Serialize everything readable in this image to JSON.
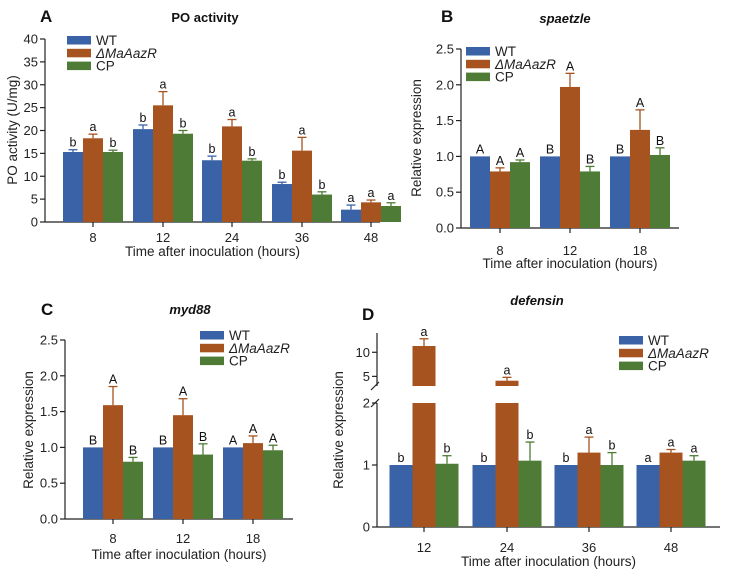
{
  "colors": {
    "WT": "#3a62a6",
    "mutant": "#a6531f",
    "CP": "#4e7b35"
  },
  "chart_data": [
    {
      "panel": "A",
      "type": "bar",
      "title": "PO activity",
      "title_italic": false,
      "xlabel": "Time after inoculation (hours)",
      "ylabel": "PO activity (U/mg)",
      "categories": [
        "8",
        "12",
        "24",
        "36",
        "48"
      ],
      "ylim": [
        0,
        40
      ],
      "yticks": [
        "0",
        "5",
        "10",
        "15",
        "20",
        "25",
        "30",
        "35",
        "40"
      ],
      "legend_position": "top-left",
      "series": [
        {
          "name": "WT",
          "values": [
            15.3,
            20.3,
            13.5,
            8.3,
            2.7
          ],
          "errors": [
            0.5,
            0.9,
            0.9,
            0.4,
            1.0
          ],
          "letters": [
            "b",
            "b",
            "b",
            "b",
            "a"
          ]
        },
        {
          "name": "ΔMaAazR",
          "values": [
            18.3,
            25.5,
            20.9,
            15.6,
            4.3
          ],
          "errors": [
            0.9,
            3.0,
            1.5,
            2.9,
            0.5
          ],
          "letters": [
            "a",
            "a",
            "a",
            "a",
            "a"
          ]
        },
        {
          "name": "CP",
          "values": [
            15.3,
            19.3,
            13.4,
            6.0,
            3.5
          ],
          "errors": [
            0.4,
            0.7,
            0.4,
            0.6,
            0.7
          ],
          "letters": [
            "b",
            "b",
            "b",
            "b",
            "a"
          ]
        }
      ]
    },
    {
      "panel": "B",
      "type": "bar",
      "title": "spaetzle",
      "title_italic": true,
      "xlabel": "Time after inoculation (hours)",
      "ylabel": "Relative expression",
      "categories": [
        "8",
        "12",
        "18"
      ],
      "ylim": [
        0,
        2.5
      ],
      "yticks": [
        "0.0",
        "0.5",
        "1.0",
        "1.5",
        "2.0",
        "2.5"
      ],
      "legend_position": "top-left",
      "series": [
        {
          "name": "WT",
          "values": [
            1.0,
            1.0,
            1.0
          ],
          "errors": [
            0,
            0,
            0
          ],
          "letters": [
            "A",
            "B",
            "B"
          ]
        },
        {
          "name": "ΔMaAazR",
          "values": [
            0.79,
            1.97,
            1.37
          ],
          "errors": [
            0.05,
            0.19,
            0.28
          ],
          "letters": [
            "A",
            "A",
            "A"
          ]
        },
        {
          "name": "CP",
          "values": [
            0.92,
            0.79,
            1.02
          ],
          "errors": [
            0.03,
            0.07,
            0.1
          ],
          "letters": [
            "A",
            "B",
            "B"
          ]
        }
      ]
    },
    {
      "panel": "C",
      "type": "bar",
      "title": "myd88",
      "title_italic": true,
      "xlabel": "Time after inoculation (hours)",
      "ylabel": "Relative expression",
      "categories": [
        "8",
        "12",
        "18"
      ],
      "ylim": [
        0,
        2.5
      ],
      "yticks": [
        "0.0",
        "0.5",
        "1.0",
        "1.5",
        "2.0",
        "2.5"
      ],
      "legend_position": "top-right",
      "series": [
        {
          "name": "WT",
          "values": [
            1.0,
            1.0,
            1.0
          ],
          "errors": [
            0,
            0,
            0
          ],
          "letters": [
            "B",
            "B",
            "A"
          ]
        },
        {
          "name": "ΔMaAazR",
          "values": [
            1.59,
            1.45,
            1.06
          ],
          "errors": [
            0.26,
            0.23,
            0.1
          ],
          "letters": [
            "A",
            "A",
            "A"
          ]
        },
        {
          "name": "CP",
          "values": [
            0.8,
            0.9,
            0.96
          ],
          "errors": [
            0.06,
            0.15,
            0.07
          ],
          "letters": [
            "B",
            "B",
            "A"
          ]
        }
      ]
    },
    {
      "panel": "D",
      "type": "bar",
      "title": "defensin",
      "title_italic": true,
      "xlabel": "Time after inoculation (hours)",
      "ylabel": "Relative expression",
      "categories": [
        "12",
        "24",
        "36",
        "48"
      ],
      "ylim": [
        0,
        14
      ],
      "axis_break": [
        2,
        3
      ],
      "yticks": [
        "0",
        "1",
        "2",
        "5",
        "10"
      ],
      "legend_position": "top-right",
      "series": [
        {
          "name": "WT",
          "values": [
            1.0,
            1.0,
            1.0,
            1.0
          ],
          "errors": [
            0,
            0,
            0,
            0
          ],
          "letters": [
            "b",
            "b",
            "b",
            "a"
          ]
        },
        {
          "name": "ΔMaAazR",
          "values": [
            11.3,
            4.1,
            1.2,
            1.2
          ],
          "errors": [
            1.5,
            0.7,
            0.25,
            0.05
          ],
          "letters": [
            "a",
            "a",
            "a",
            "a"
          ]
        },
        {
          "name": "CP",
          "values": [
            1.02,
            1.07,
            1.0,
            1.07
          ],
          "errors": [
            0.13,
            0.3,
            0.2,
            0.08
          ],
          "letters": [
            "b",
            "b",
            "b",
            "a"
          ]
        }
      ]
    }
  ]
}
